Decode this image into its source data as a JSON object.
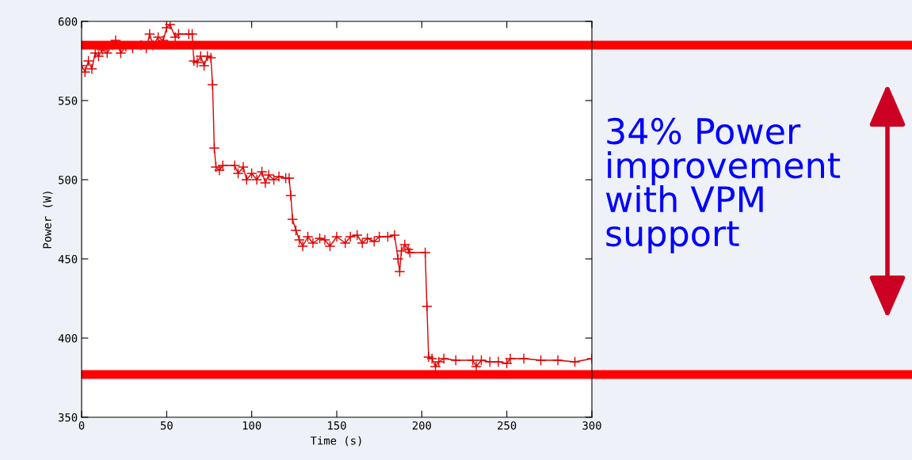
{
  "chart_data": {
    "type": "line",
    "xlabel": "Time (s)",
    "ylabel": "Power (W)",
    "xlim": [
      0,
      300
    ],
    "ylim": [
      350,
      600
    ],
    "xticks": [
      0,
      50,
      100,
      150,
      200,
      250,
      300
    ],
    "yticks": [
      350,
      400,
      450,
      500,
      550,
      600
    ],
    "grid": false,
    "legend": false,
    "marker": "cross",
    "line_style": "solid",
    "series": [
      {
        "color": "#dd0000",
        "x": [
          0,
          2,
          4,
          6,
          8,
          10,
          12,
          15,
          18,
          20,
          23,
          26,
          30,
          35,
          38,
          40,
          42,
          45,
          48,
          50,
          52,
          55,
          57,
          63,
          65,
          66,
          68,
          70,
          72,
          74,
          76,
          77,
          78,
          79,
          81,
          83,
          90,
          92,
          95,
          97,
          100,
          103,
          106,
          108,
          110,
          113,
          116,
          120,
          122,
          123,
          124,
          126,
          128,
          130,
          133,
          136,
          140,
          143,
          146,
          150,
          155,
          158,
          162,
          165,
          168,
          172,
          175,
          180,
          184,
          186,
          187,
          188,
          190,
          192,
          193,
          202,
          203,
          204,
          206,
          208,
          210,
          213,
          220,
          230,
          232,
          235,
          240,
          245,
          250,
          252,
          260,
          270,
          280,
          290,
          300
        ],
        "values": [
          572,
          568,
          575,
          570,
          580,
          578,
          582,
          580,
          585,
          588,
          580,
          584,
          583,
          585,
          583,
          592,
          585,
          590,
          588,
          596,
          598,
          590,
          592,
          592,
          592,
          575,
          574,
          578,
          572,
          578,
          577,
          560,
          520,
          508,
          506,
          509,
          509,
          504,
          508,
          500,
          504,
          500,
          505,
          498,
          503,
          500,
          502,
          501,
          501,
          490,
          475,
          468,
          462,
          458,
          464,
          460,
          463,
          462,
          458,
          464,
          460,
          464,
          465,
          460,
          463,
          461,
          464,
          464,
          465,
          450,
          442,
          455,
          459,
          456,
          454,
          454,
          420,
          388,
          387,
          382,
          385,
          387,
          386,
          386,
          382,
          386,
          385,
          385,
          384,
          387,
          387,
          386,
          386,
          385,
          387
        ]
      }
    ],
    "ref_lines": [
      {
        "axis": "y",
        "value": 585,
        "color": "#ff0000"
      },
      {
        "axis": "y",
        "value": 377,
        "color": "#ff0000"
      }
    ],
    "annotations": [
      "34% Power\nimprovement\nwith VPM\nsupport"
    ]
  }
}
